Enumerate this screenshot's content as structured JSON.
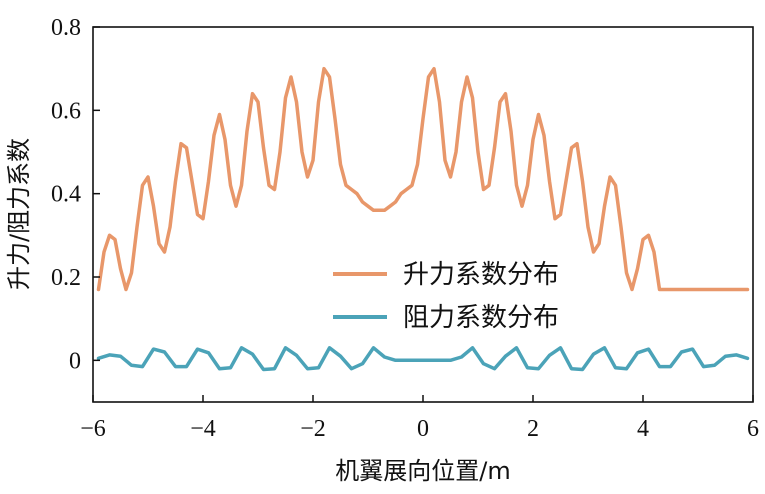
{
  "chart_data": {
    "type": "line",
    "xlabel": "机翼展向位置/m",
    "ylabel": "升力/阻力系数",
    "xlim": [
      -6,
      6
    ],
    "ylim": [
      -0.1,
      0.8
    ],
    "xticks": [
      -6,
      -4,
      -2,
      0,
      2,
      4,
      6
    ],
    "xtick_labels": [
      "−6",
      "−4",
      "−2",
      "0",
      "2",
      "4",
      "6"
    ],
    "yticks": [
      0,
      0.2,
      0.4,
      0.6,
      0.8
    ],
    "ytick_labels": [
      "0",
      "0.2",
      "0.4",
      "0.6",
      "0.8"
    ],
    "grid": false,
    "legend_position": "center-right",
    "series": [
      {
        "name": "升力系数分布",
        "color": "#E8976A",
        "x": [
          -5.9,
          -5.8,
          -5.7,
          -5.6,
          -5.5,
          -5.4,
          -5.3,
          -5.2,
          -5.1,
          -5.0,
          -4.9,
          -4.8,
          -4.7,
          -4.6,
          -4.5,
          -4.4,
          -4.3,
          -4.2,
          -4.1,
          -4.0,
          -3.9,
          -3.8,
          -3.7,
          -3.6,
          -3.5,
          -3.4,
          -3.3,
          -3.2,
          -3.1,
          -3.0,
          -2.9,
          -2.8,
          -2.7,
          -2.6,
          -2.5,
          -2.4,
          -2.3,
          -2.2,
          -2.1,
          -2.0,
          -1.9,
          -1.8,
          -1.7,
          -1.6,
          -1.5,
          -1.4,
          -1.3,
          -1.2,
          -1.1,
          -1.0,
          -0.9,
          -0.8,
          -0.7,
          -0.6,
          -0.5,
          -0.4,
          -0.3,
          -0.2,
          -0.1,
          0.0,
          0.1,
          0.2,
          0.3,
          0.4,
          0.5,
          0.6,
          0.7,
          0.8,
          0.9,
          1.0,
          1.1,
          1.2,
          1.3,
          1.4,
          1.5,
          1.6,
          1.7,
          1.8,
          1.9,
          2.0,
          2.1,
          2.2,
          2.3,
          2.4,
          2.5,
          2.6,
          2.7,
          2.8,
          2.9,
          3.0,
          3.1,
          3.2,
          3.3,
          3.4,
          3.5,
          3.6,
          3.7,
          3.8,
          3.9,
          4.0,
          4.1,
          4.2,
          4.3,
          4.4,
          4.5,
          4.6,
          4.7,
          4.8,
          4.9,
          5.0,
          5.1,
          5.2,
          5.3,
          5.4,
          5.5,
          5.6,
          5.7,
          5.8,
          5.9
        ],
        "values": [
          0.17,
          0.26,
          0.3,
          0.29,
          0.22,
          0.17,
          0.21,
          0.32,
          0.42,
          0.44,
          0.37,
          0.28,
          0.26,
          0.32,
          0.43,
          0.52,
          0.51,
          0.43,
          0.35,
          0.34,
          0.43,
          0.54,
          0.59,
          0.53,
          0.42,
          0.37,
          0.42,
          0.55,
          0.64,
          0.62,
          0.51,
          0.42,
          0.41,
          0.5,
          0.63,
          0.68,
          0.62,
          0.5,
          0.44,
          0.48,
          0.62,
          0.7,
          0.68,
          0.58,
          0.47,
          0.42,
          0.41,
          0.4,
          0.38,
          0.37,
          0.36,
          0.36,
          0.36,
          0.37,
          0.38,
          0.4,
          0.41,
          0.42,
          0.47,
          0.58,
          0.68,
          0.7,
          0.62,
          0.48,
          0.44,
          0.5,
          0.62,
          0.68,
          0.63,
          0.5,
          0.41,
          0.42,
          0.51,
          0.62,
          0.64,
          0.55,
          0.42,
          0.37,
          0.42,
          0.53,
          0.59,
          0.54,
          0.43,
          0.34,
          0.35,
          0.43,
          0.51,
          0.52,
          0.43,
          0.32,
          0.26,
          0.28,
          0.37,
          0.44,
          0.42,
          0.32,
          0.21,
          0.17,
          0.22,
          0.29,
          0.3,
          0.26,
          0.17,
          0.17,
          0.17,
          0.17,
          0.17,
          0.17,
          0.17,
          0.17,
          0.17,
          0.17,
          0.17,
          0.17,
          0.17,
          0.17,
          0.17,
          0.17,
          0.17
        ]
      },
      {
        "name": "阻力系数分布",
        "color": "#4BA3B8",
        "x": [
          -5.9,
          -5.7,
          -5.5,
          -5.3,
          -5.1,
          -4.9,
          -4.7,
          -4.5,
          -4.3,
          -4.1,
          -3.9,
          -3.7,
          -3.5,
          -3.3,
          -3.1,
          -2.9,
          -2.7,
          -2.5,
          -2.3,
          -2.1,
          -1.9,
          -1.7,
          -1.5,
          -1.3,
          -1.1,
          -0.9,
          -0.7,
          -0.5,
          -0.3,
          -0.1,
          0.1,
          0.3,
          0.5,
          0.7,
          0.9,
          1.1,
          1.3,
          1.5,
          1.7,
          1.9,
          2.1,
          2.3,
          2.5,
          2.7,
          2.9,
          3.1,
          3.3,
          3.5,
          3.7,
          3.9,
          4.1,
          4.3,
          4.5,
          4.7,
          4.9,
          5.1,
          5.3,
          5.5,
          5.7,
          5.9
        ],
        "values": [
          0.005,
          0.013,
          0.01,
          -0.012,
          -0.015,
          0.027,
          0.02,
          -0.015,
          -0.015,
          0.027,
          0.018,
          -0.02,
          -0.018,
          0.03,
          0.015,
          -0.022,
          -0.02,
          0.03,
          0.012,
          -0.02,
          -0.018,
          0.03,
          0.01,
          -0.02,
          -0.008,
          0.03,
          0.008,
          0.0,
          0.0,
          0.0,
          0.0,
          0.0,
          0.0,
          0.008,
          0.03,
          -0.008,
          -0.02,
          0.01,
          0.03,
          -0.018,
          -0.02,
          0.012,
          0.03,
          -0.02,
          -0.022,
          0.015,
          0.03,
          -0.018,
          -0.02,
          0.018,
          0.027,
          -0.015,
          -0.015,
          0.02,
          0.027,
          -0.015,
          -0.012,
          0.01,
          0.013,
          0.005
        ]
      }
    ]
  }
}
